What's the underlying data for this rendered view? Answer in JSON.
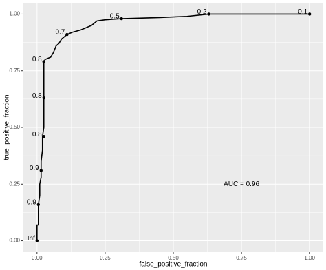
{
  "chart_data": {
    "type": "line",
    "xlabel": "false_positive_fraction",
    "ylabel": "true_positive_fraction",
    "xlim": [
      -0.05,
      1.05
    ],
    "ylim": [
      -0.05,
      1.05
    ],
    "xticks": [
      {
        "value": 0,
        "label": "0.00"
      },
      {
        "value": 0.25,
        "label": "0.25"
      },
      {
        "value": 0.5,
        "label": "0.50"
      },
      {
        "value": 0.75,
        "label": "0.75"
      },
      {
        "value": 1,
        "label": "1.00"
      }
    ],
    "yticks": [
      {
        "value": 0,
        "label": "0.00"
      },
      {
        "value": 0.25,
        "label": "0.25"
      },
      {
        "value": 0.5,
        "label": "0.50"
      },
      {
        "value": 0.75,
        "label": "0.75"
      },
      {
        "value": 1,
        "label": "1.00"
      }
    ],
    "grid": true,
    "background": "#ebebeb",
    "color": "#000000",
    "curve": {
      "x": [
        0,
        0,
        0.005,
        0.005,
        0.01,
        0.01,
        0.015,
        0.015,
        0.02,
        0.02,
        0.025,
        0.025,
        0.03,
        0.05,
        0.06,
        0.07,
        0.08,
        0.09,
        0.1,
        0.11,
        0.13,
        0.16,
        0.18,
        0.2,
        0.22,
        0.25,
        0.31,
        0.45,
        0.55,
        0.63,
        1
      ],
      "y": [
        0,
        0.07,
        0.07,
        0.16,
        0.2,
        0.25,
        0.28,
        0.35,
        0.4,
        0.46,
        0.5,
        0.79,
        0.8,
        0.81,
        0.83,
        0.86,
        0.87,
        0.89,
        0.9,
        0.91,
        0.92,
        0.93,
        0.94,
        0.95,
        0.97,
        0.975,
        0.98,
        0.985,
        0.99,
        1,
        1
      ]
    },
    "cutoffs": {
      "x": [
        0,
        0.005,
        0.015,
        0.025,
        0.025,
        0.025,
        0.11,
        0.31,
        0.63,
        1
      ],
      "y": [
        0,
        0.16,
        0.31,
        0.46,
        0.63,
        0.79,
        0.91,
        0.98,
        1,
        1
      ],
      "labels": [
        "Inf",
        "0.9",
        "0.9",
        "0.8",
        "0.8",
        "0.8",
        "0.7",
        "0.5",
        "0.2",
        "0.1"
      ]
    },
    "annotation": {
      "text": "AUC = 0.96",
      "x": 0.75,
      "y": 0.25
    }
  }
}
